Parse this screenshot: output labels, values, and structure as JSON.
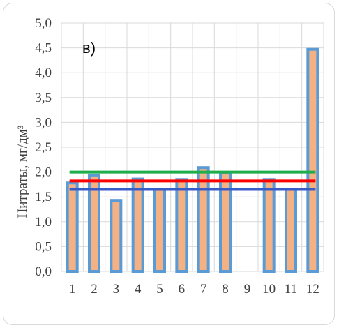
{
  "chart_data": {
    "type": "bar",
    "panel_label": "в)",
    "ylabel": "Нитраты, мг/дм³",
    "xlabel": "",
    "categories": [
      "1",
      "2",
      "3",
      "4",
      "5",
      "6",
      "7",
      "8",
      "9",
      "10",
      "11",
      "12"
    ],
    "values": [
      1.78,
      1.94,
      1.43,
      1.86,
      1.65,
      1.85,
      2.09,
      1.98,
      null,
      1.85,
      1.65,
      4.47
    ],
    "ylim": [
      0,
      5
    ],
    "yticks": [
      "0,0",
      "0,5",
      "1,0",
      "1,5",
      "2,0",
      "2,5",
      "3,0",
      "3,5",
      "4,0",
      "4,5",
      "5,0"
    ],
    "grid": true,
    "reference_lines": [
      {
        "value": 2.0,
        "color": "#1fae4b"
      },
      {
        "value": 1.82,
        "color": "#ff0000"
      },
      {
        "value": 1.65,
        "color": "#3a5cc9"
      }
    ],
    "bar_fill": "#f4b183",
    "bar_border": "#5b9bd5"
  }
}
